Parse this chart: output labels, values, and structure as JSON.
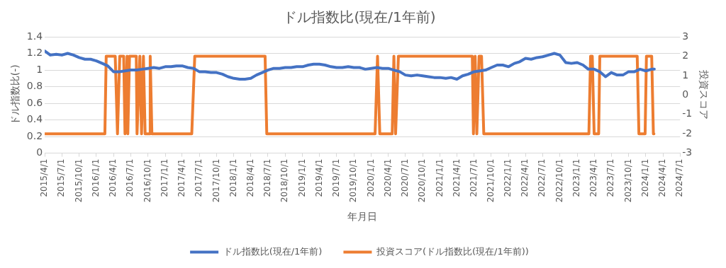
{
  "chart_data": {
    "type": "line",
    "title": "ドル指数比(現在/1年前)",
    "xlabel": "年月日",
    "ylabel": "ドル指数比(-)",
    "y2label": "投資スコア",
    "xlim": [
      "2015-04-01",
      "2024-07-01"
    ],
    "xticks": [
      {
        "value": "2015-04-01",
        "label": "2015/4/1"
      },
      {
        "value": "2015-07-01",
        "label": "2015/7/1"
      },
      {
        "value": "2015-10-01",
        "label": "2015/10/1"
      },
      {
        "value": "2016-01-01",
        "label": "2016/1/1"
      },
      {
        "value": "2016-04-01",
        "label": "2016/4/1"
      },
      {
        "value": "2016-07-01",
        "label": "2016/7/1"
      },
      {
        "value": "2016-10-01",
        "label": "2016/10/1"
      },
      {
        "value": "2017-01-01",
        "label": "2017/1/1"
      },
      {
        "value": "2017-04-01",
        "label": "2017/4/1"
      },
      {
        "value": "2017-07-01",
        "label": "2017/7/1"
      },
      {
        "value": "2017-10-01",
        "label": "2017/10/1"
      },
      {
        "value": "2018-01-01",
        "label": "2018/1/1"
      },
      {
        "value": "2018-04-01",
        "label": "2018/4/1"
      },
      {
        "value": "2018-07-01",
        "label": "2018/7/1"
      },
      {
        "value": "2018-10-01",
        "label": "2018/10/1"
      },
      {
        "value": "2019-01-01",
        "label": "2019/1/1"
      },
      {
        "value": "2019-04-01",
        "label": "2019/4/1"
      },
      {
        "value": "2019-07-01",
        "label": "2019/7/1"
      },
      {
        "value": "2019-10-01",
        "label": "2019/10/1"
      },
      {
        "value": "2020-01-01",
        "label": "2020/1/1"
      },
      {
        "value": "2020-04-01",
        "label": "2020/4/1"
      },
      {
        "value": "2020-07-01",
        "label": "2020/7/1"
      },
      {
        "value": "2020-10-01",
        "label": "2020/10/1"
      },
      {
        "value": "2021-01-01",
        "label": "2021/1/1"
      },
      {
        "value": "2021-04-01",
        "label": "2021/4/1"
      },
      {
        "value": "2021-07-01",
        "label": "2021/7/1"
      },
      {
        "value": "2021-10-01",
        "label": "2021/10/1"
      },
      {
        "value": "2022-01-01",
        "label": "2022/1/1"
      },
      {
        "value": "2022-04-01",
        "label": "2022/4/1"
      },
      {
        "value": "2022-07-01",
        "label": "2022/7/1"
      },
      {
        "value": "2022-10-01",
        "label": "2022/10/1"
      },
      {
        "value": "2023-01-01",
        "label": "2023/1/1"
      },
      {
        "value": "2023-04-01",
        "label": "2023/4/1"
      },
      {
        "value": "2023-07-01",
        "label": "2023/7/1"
      },
      {
        "value": "2023-10-01",
        "label": "2023/10/1"
      },
      {
        "value": "2024-01-01",
        "label": "2024/1/1"
      },
      {
        "value": "2024-04-01",
        "label": "2024/4/1"
      },
      {
        "value": "2024-07-01",
        "label": "2024/7/1"
      }
    ],
    "ylim": [
      0,
      1.4
    ],
    "yticks": [
      0,
      0.2,
      0.4,
      0.6,
      0.8,
      1,
      1.2,
      1.4
    ],
    "y2lim": [
      -3,
      3
    ],
    "y2ticks": [
      -3,
      -2,
      -1,
      0,
      1,
      2,
      3
    ],
    "grid": "y",
    "legend": "bottom",
    "marker": "none",
    "line_style": "solid",
    "series": [
      {
        "name": "ドル指数比(現在/1年前)",
        "color": "#4472c4",
        "x": [
          "2015-04-01",
          "2015-05-01",
          "2015-06-01",
          "2015-07-01",
          "2015-08-01",
          "2015-09-01",
          "2015-10-01",
          "2015-11-01",
          "2015-12-01",
          "2016-01-01",
          "2016-02-01",
          "2016-03-01",
          "2016-04-01",
          "2016-05-01",
          "2016-06-01",
          "2016-07-01",
          "2016-08-01",
          "2016-09-01",
          "2016-10-01",
          "2016-11-01",
          "2016-12-01",
          "2017-01-01",
          "2017-02-01",
          "2017-03-01",
          "2017-04-01",
          "2017-05-01",
          "2017-06-01",
          "2017-07-01",
          "2017-08-01",
          "2017-09-01",
          "2017-10-01",
          "2017-11-01",
          "2017-12-01",
          "2018-01-01",
          "2018-02-01",
          "2018-03-01",
          "2018-04-01",
          "2018-05-01",
          "2018-06-01",
          "2018-07-01",
          "2018-08-01",
          "2018-09-01",
          "2018-10-01",
          "2018-11-01",
          "2018-12-01",
          "2019-01-01",
          "2019-02-01",
          "2019-03-01",
          "2019-04-01",
          "2019-05-01",
          "2019-06-01",
          "2019-07-01",
          "2019-08-01",
          "2019-09-01",
          "2019-10-01",
          "2019-11-01",
          "2019-12-01",
          "2020-01-01",
          "2020-02-01",
          "2020-03-01",
          "2020-04-01",
          "2020-05-01",
          "2020-06-01",
          "2020-07-01",
          "2020-08-01",
          "2020-09-01",
          "2020-10-01",
          "2020-11-01",
          "2020-12-01",
          "2021-01-01",
          "2021-02-01",
          "2021-03-01",
          "2021-04-01",
          "2021-05-01",
          "2021-06-01",
          "2021-07-01",
          "2021-08-01",
          "2021-09-01",
          "2021-10-01",
          "2021-11-01",
          "2021-12-01",
          "2022-01-01",
          "2022-02-01",
          "2022-03-01",
          "2022-04-01",
          "2022-05-01",
          "2022-06-01",
          "2022-07-01",
          "2022-08-01",
          "2022-09-01",
          "2022-10-01",
          "2022-11-01",
          "2022-12-01",
          "2023-01-01",
          "2023-02-01",
          "2023-03-01",
          "2023-04-01",
          "2023-05-01",
          "2023-06-01",
          "2023-07-01",
          "2023-08-01",
          "2023-09-01",
          "2023-10-01",
          "2023-11-01",
          "2023-12-01",
          "2024-01-01",
          "2024-02-01",
          "2024-02-15"
        ],
        "values": [
          1.23,
          1.18,
          1.19,
          1.18,
          1.2,
          1.18,
          1.15,
          1.13,
          1.13,
          1.11,
          1.08,
          1.05,
          0.98,
          0.98,
          0.99,
          1,
          1,
          1.01,
          1.02,
          1.03,
          1.02,
          1.04,
          1.04,
          1.05,
          1.05,
          1.03,
          1.02,
          0.98,
          0.98,
          0.97,
          0.97,
          0.95,
          0.92,
          0.9,
          0.89,
          0.89,
          0.9,
          0.94,
          0.97,
          1,
          1.02,
          1.02,
          1.03,
          1.03,
          1.04,
          1.04,
          1.06,
          1.07,
          1.07,
          1.06,
          1.04,
          1.03,
          1.03,
          1.04,
          1.03,
          1.03,
          1.01,
          1.02,
          1.03,
          1.02,
          1.02,
          1,
          0.98,
          0.94,
          0.93,
          0.94,
          0.93,
          0.92,
          0.91,
          0.91,
          0.9,
          0.91,
          0.89,
          0.93,
          0.95,
          0.98,
          0.99,
          1,
          1.03,
          1.06,
          1.06,
          1.04,
          1.08,
          1.1,
          1.14,
          1.13,
          1.15,
          1.16,
          1.18,
          1.2,
          1.18,
          1.09,
          1.08,
          1.09,
          1.06,
          1.01,
          1.01,
          0.98,
          0.92,
          0.97,
          0.94,
          0.94,
          0.98,
          0.98,
          1.01,
          0.99,
          1.01,
          1.01
        ]
      },
      {
        "name": "投資スコア(ドル指数比(現在/1年前))",
        "color": "#ed7d31",
        "axis": "y2",
        "x": [
          "2015-04-01",
          "2016-02-15",
          "2016-02-22",
          "2016-04-10",
          "2016-04-22",
          "2016-05-04",
          "2016-05-25",
          "2016-06-01",
          "2016-06-12",
          "2016-06-16",
          "2016-06-25",
          "2016-07-31",
          "2016-08-04",
          "2016-08-19",
          "2016-08-28",
          "2016-09-07",
          "2016-09-16",
          "2016-10-10",
          "2016-10-13",
          "2016-10-22",
          "2017-05-22",
          "2017-06-07",
          "2018-06-16",
          "2018-06-25",
          "2020-01-22",
          "2020-02-04",
          "2020-02-16",
          "2020-04-22",
          "2020-05-01",
          "2020-05-10",
          "2020-05-25",
          "2021-06-22",
          "2021-06-28",
          "2021-07-07",
          "2021-07-16",
          "2021-07-28",
          "2021-08-10",
          "2021-08-22",
          "2023-03-04",
          "2023-03-13",
          "2023-03-22",
          "2023-04-01",
          "2023-04-25",
          "2023-05-01",
          "2023-11-16",
          "2023-11-25",
          "2023-12-28",
          "2024-01-04",
          "2024-02-01",
          "2024-02-10",
          "2024-02-13"
        ],
        "values": [
          -2,
          -2,
          2,
          2,
          -2,
          2,
          2,
          -2,
          2,
          -2,
          2,
          2,
          -2,
          2,
          -2,
          2,
          -2,
          -2,
          2,
          -2,
          -2,
          2,
          2,
          -2,
          -2,
          2,
          -2,
          -2,
          2,
          -2,
          2,
          2,
          -2,
          2,
          -2,
          2,
          2,
          -2,
          -2,
          2,
          2,
          -2,
          -2,
          2,
          2,
          -2,
          -2,
          2,
          2,
          -2,
          -2
        ]
      }
    ]
  }
}
